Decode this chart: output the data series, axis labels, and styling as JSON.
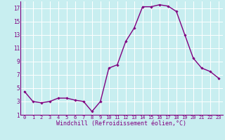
{
  "x": [
    0,
    1,
    2,
    3,
    4,
    5,
    6,
    7,
    8,
    9,
    10,
    11,
    12,
    13,
    14,
    15,
    16,
    17,
    18,
    19,
    20,
    21,
    22,
    23
  ],
  "y": [
    4.5,
    3.0,
    2.8,
    3.0,
    3.5,
    3.5,
    3.2,
    3.0,
    1.5,
    3.0,
    8.0,
    8.5,
    12.0,
    14.0,
    17.2,
    17.2,
    17.5,
    17.3,
    16.5,
    13.0,
    9.5,
    8.0,
    7.5,
    6.5
  ],
  "line_color": "#800080",
  "marker": "D",
  "marker_size": 1.8,
  "xlabel": "Windchill (Refroidissement éolien,°C)",
  "xlabel_fontsize": 6.0,
  "ylim": [
    1,
    18
  ],
  "xlim": [
    -0.5,
    23.5
  ],
  "yticks": [
    1,
    3,
    5,
    7,
    9,
    11,
    13,
    15,
    17
  ],
  "xticks": [
    0,
    1,
    2,
    3,
    4,
    5,
    6,
    7,
    8,
    9,
    10,
    11,
    12,
    13,
    14,
    15,
    16,
    17,
    18,
    19,
    20,
    21,
    22,
    23
  ],
  "bg_color": "#c8eef0",
  "grid_color": "#b0dde0",
  "tick_color": "#800080",
  "ytick_fontsize": 5.5,
  "xtick_fontsize": 5.0,
  "line_width": 1.0
}
